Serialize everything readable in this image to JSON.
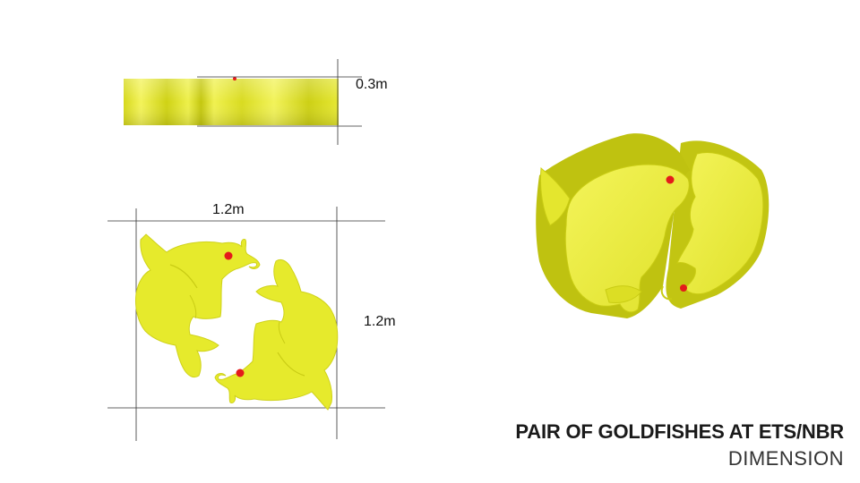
{
  "dimensions": {
    "height": "0.3m",
    "width": "1.2m",
    "depth": "1.2m"
  },
  "title": {
    "main": "PAIR OF GOLDFISHES AT ETS/NBR",
    "sub": "DIMENSION"
  },
  "colors": {
    "fish_fill": "#e8ea2a",
    "fish_shadow": "#b9bb10",
    "eye": "#e41b1b",
    "dimension_line": "#333333"
  }
}
